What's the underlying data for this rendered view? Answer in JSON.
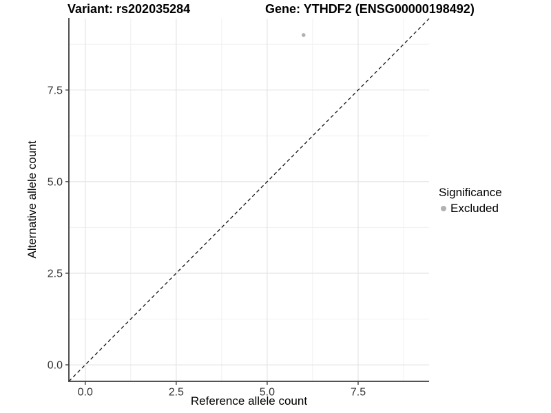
{
  "header": {
    "variant_title": "Variant: rs202035284",
    "gene_title": "Gene: YTHDF2 (ENSG00000198492)"
  },
  "chart_data": {
    "type": "scatter",
    "title": "Variant: rs202035284   Gene: YTHDF2 (ENSG00000198492)",
    "title_left": "Variant: rs202035284",
    "title_right": "Gene: YTHDF2 (ENSG00000198492)",
    "xlabel": "Reference allele count",
    "ylabel": "Alternative allele count",
    "xlim": [
      -0.45,
      9.45
    ],
    "ylim": [
      -0.45,
      9.45
    ],
    "x_ticks": {
      "values": [
        0,
        2.5,
        5,
        7.5
      ],
      "labels": [
        "0.0",
        "2.5",
        "5.0",
        "7.5"
      ]
    },
    "y_ticks": {
      "values": [
        0,
        2.5,
        5,
        7.5
      ],
      "labels": [
        "0.0",
        "2.5",
        "5.0",
        "7.5"
      ]
    },
    "minor_grid": [
      1.25,
      3.75,
      6.25,
      8.75
    ],
    "grid": "major+minor",
    "identity_line": {
      "equation": "y = x",
      "style": "dashed",
      "color": "#111111"
    },
    "series": [
      {
        "name": "Excluded",
        "color": "#b1b1b1",
        "marker": "circle",
        "points": [
          {
            "x": 6,
            "y": 9
          }
        ]
      }
    ],
    "legend": {
      "title": "Significance",
      "position": "right",
      "items": [
        {
          "label": "Excluded",
          "color": "#b1b1b1",
          "marker": "circle"
        }
      ]
    },
    "style": {
      "background": "#ffffff",
      "major_grid_color": "#e4e4e4",
      "minor_grid_color": "#f0f0f0",
      "axis_line_color": "#3c3c3c",
      "tick_label_color": "#333333",
      "point_radius_px": 2.8
    }
  }
}
